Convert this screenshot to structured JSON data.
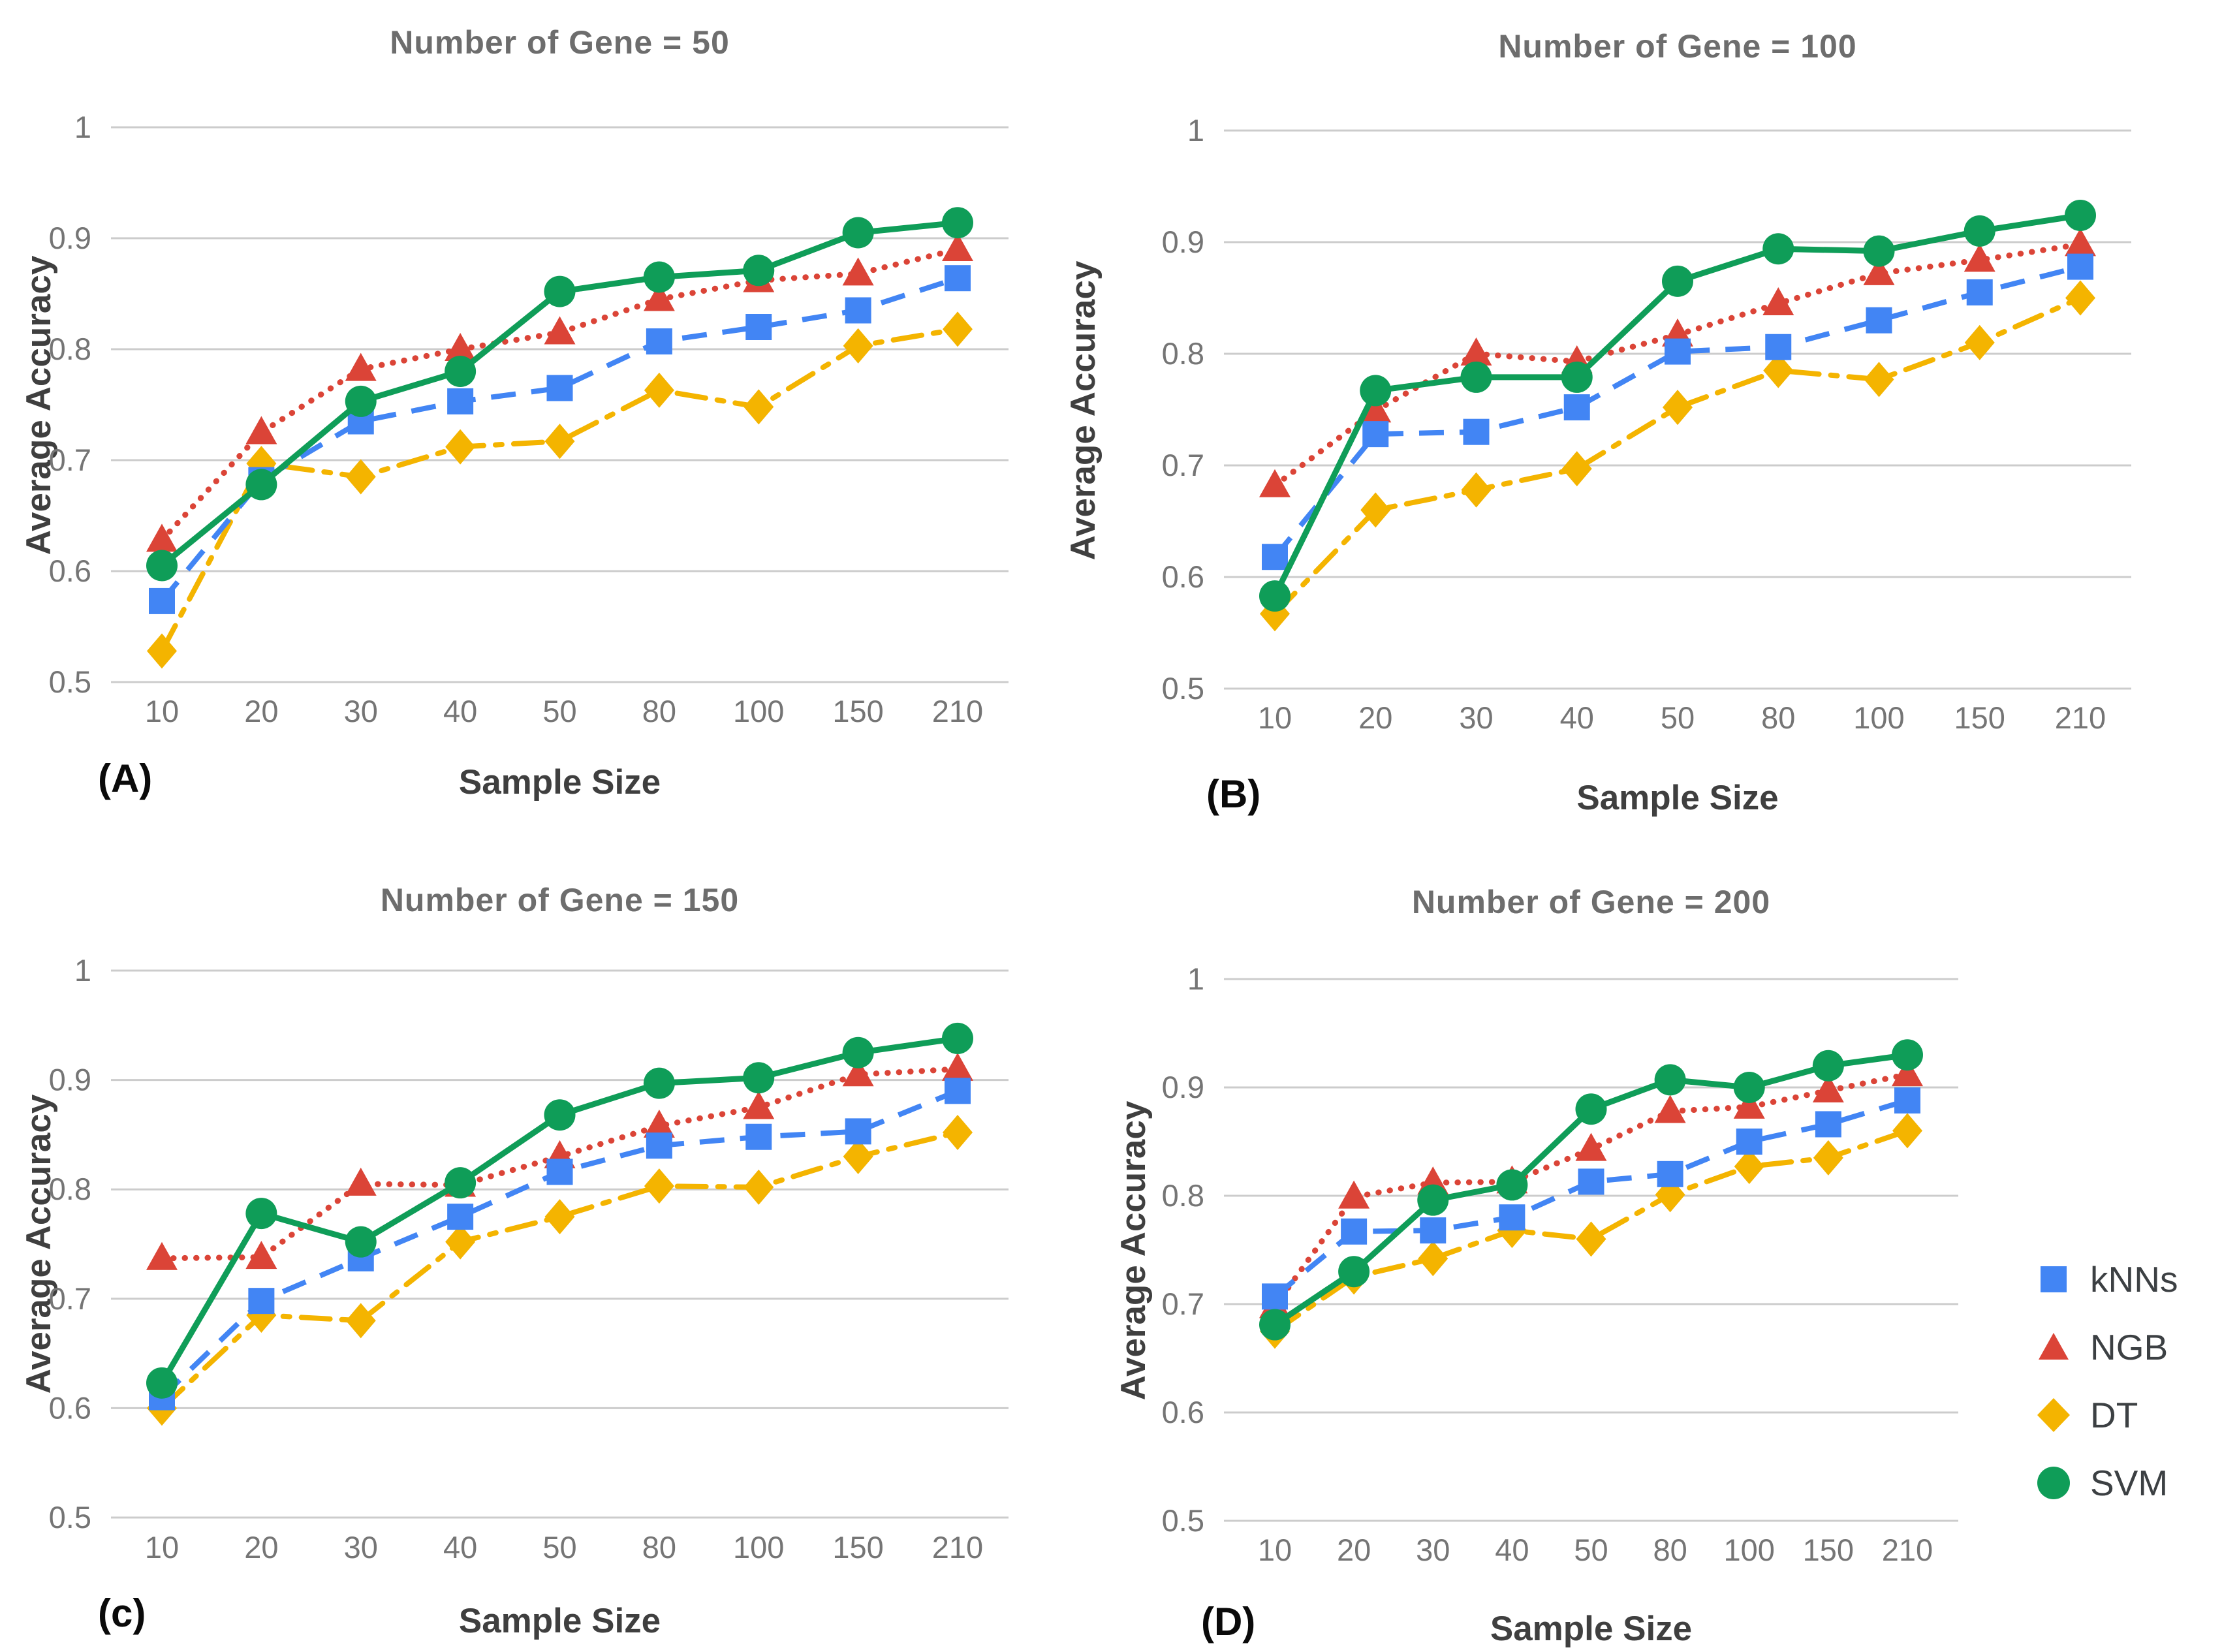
{
  "figure": {
    "background": "#ffffff",
    "legend": {
      "items": [
        {
          "label": "kNNs",
          "color": "#4285F4",
          "marker": "square"
        },
        {
          "label": "NGB",
          "color": "#DB4437",
          "marker": "triangle"
        },
        {
          "label": "DT",
          "color": "#F4B400",
          "marker": "diamond"
        },
        {
          "label": "SVM",
          "color": "#0F9D58",
          "marker": "circle"
        }
      ]
    }
  },
  "chart_data": [
    {
      "type": "line",
      "panel_label": "(A)",
      "title": "Number of Gene = 50",
      "xlabel": "Sample Size",
      "ylabel": "Average Accuracy",
      "categories": [
        "10",
        "20",
        "30",
        "40",
        "50",
        "80",
        "100",
        "150",
        "210"
      ],
      "ylim": [
        0.5,
        1.0
      ],
      "yticks": [
        1,
        0.9,
        0.8,
        0.7,
        0.6,
        0.5
      ],
      "ytick_labels": [
        "1",
        "0.9",
        "0.8",
        "0.7",
        "0.6",
        "0.5"
      ],
      "grid": true,
      "legend_position": "figure-right",
      "series": [
        {
          "name": "kNNs",
          "color": "#4285F4",
          "marker": "square",
          "line_style": "dashed",
          "values": [
            0.573,
            0.682,
            0.735,
            0.753,
            0.765,
            0.807,
            0.82,
            0.835,
            0.864
          ]
        },
        {
          "name": "NGB",
          "color": "#DB4437",
          "marker": "triangle",
          "line_style": "dotted",
          "values": [
            0.628,
            0.725,
            0.782,
            0.8,
            0.815,
            0.845,
            0.862,
            0.868,
            0.89
          ]
        },
        {
          "name": "DT",
          "color": "#F4B400",
          "marker": "diamond",
          "line_style": "dashdot",
          "values": [
            0.528,
            0.697,
            0.685,
            0.712,
            0.717,
            0.763,
            0.748,
            0.803,
            0.818
          ]
        },
        {
          "name": "SVM",
          "color": "#0F9D58",
          "marker": "circle",
          "line_style": "solid",
          "values": [
            0.605,
            0.678,
            0.753,
            0.78,
            0.852,
            0.865,
            0.871,
            0.905,
            0.914
          ]
        }
      ]
    },
    {
      "type": "line",
      "panel_label": "(B)",
      "title": "Number of Gene = 100",
      "xlabel": "Sample Size",
      "ylabel": "Average Accuracy",
      "categories": [
        "10",
        "20",
        "30",
        "40",
        "50",
        "80",
        "100",
        "150",
        "210"
      ],
      "ylim": [
        0.5,
        1.0
      ],
      "yticks": [
        1,
        0.9,
        0.8,
        0.7,
        0.6,
        0.5
      ],
      "ytick_labels": [
        "1",
        "0.9",
        "0.8",
        "0.7",
        "0.6",
        "0.5"
      ],
      "grid": true,
      "legend_position": "figure-right",
      "series": [
        {
          "name": "kNNs",
          "color": "#4285F4",
          "marker": "square",
          "line_style": "dashed",
          "values": [
            0.618,
            0.728,
            0.73,
            0.752,
            0.802,
            0.806,
            0.83,
            0.855,
            0.878
          ]
        },
        {
          "name": "NGB",
          "color": "#DB4437",
          "marker": "triangle",
          "line_style": "dotted",
          "values": [
            0.682,
            0.749,
            0.8,
            0.793,
            0.817,
            0.845,
            0.872,
            0.884,
            0.898
          ]
        },
        {
          "name": "DT",
          "color": "#F4B400",
          "marker": "diamond",
          "line_style": "dashdot",
          "values": [
            0.567,
            0.66,
            0.678,
            0.697,
            0.752,
            0.785,
            0.777,
            0.81,
            0.85
          ]
        },
        {
          "name": "SVM",
          "color": "#0F9D58",
          "marker": "circle",
          "line_style": "solid",
          "values": [
            0.583,
            0.767,
            0.779,
            0.779,
            0.865,
            0.894,
            0.892,
            0.91,
            0.924
          ]
        }
      ]
    },
    {
      "type": "line",
      "panel_label": "(c)",
      "title": "Number of Gene = 150",
      "xlabel": "Sample Size",
      "ylabel": "Average Accuracy",
      "categories": [
        "10",
        "20",
        "30",
        "40",
        "50",
        "80",
        "100",
        "150",
        "210"
      ],
      "ylim": [
        0.5,
        1.0
      ],
      "yticks": [
        1,
        0.9,
        0.8,
        0.7,
        0.6,
        0.5
      ],
      "ytick_labels": [
        "1",
        "0.9",
        "0.8",
        "0.7",
        "0.6",
        "0.5"
      ],
      "grid": true,
      "legend_position": "figure-right",
      "series": [
        {
          "name": "kNNs",
          "color": "#4285F4",
          "marker": "square",
          "line_style": "dashed",
          "values": [
            0.61,
            0.698,
            0.737,
            0.775,
            0.816,
            0.84,
            0.848,
            0.853,
            0.89
          ]
        },
        {
          "name": "NGB",
          "color": "#DB4437",
          "marker": "triangle",
          "line_style": "dotted",
          "values": [
            0.737,
            0.738,
            0.805,
            0.804,
            0.83,
            0.858,
            0.875,
            0.905,
            0.91
          ]
        },
        {
          "name": "DT",
          "color": "#F4B400",
          "marker": "diamond",
          "line_style": "dashdot",
          "values": [
            0.6,
            0.685,
            0.68,
            0.752,
            0.775,
            0.803,
            0.802,
            0.83,
            0.852
          ]
        },
        {
          "name": "SVM",
          "color": "#0F9D58",
          "marker": "circle",
          "line_style": "solid",
          "values": [
            0.623,
            0.778,
            0.752,
            0.806,
            0.868,
            0.897,
            0.902,
            0.925,
            0.938
          ]
        }
      ]
    },
    {
      "type": "line",
      "panel_label": "(D)",
      "title": "Number of Gene = 200",
      "xlabel": "Sample Size",
      "ylabel": "Average Accuracy",
      "categories": [
        "10",
        "20",
        "30",
        "40",
        "50",
        "80",
        "100",
        "150",
        "210"
      ],
      "ylim": [
        0.5,
        1.0
      ],
      "yticks": [
        1,
        0.9,
        0.8,
        0.7,
        0.6,
        0.5
      ],
      "ytick_labels": [
        "1",
        "0.9",
        "0.8",
        "0.7",
        "0.6",
        "0.5"
      ],
      "grid": true,
      "legend_position": "figure-right",
      "series": [
        {
          "name": "kNNs",
          "color": "#4285F4",
          "marker": "square",
          "line_style": "dashed",
          "values": [
            0.707,
            0.767,
            0.768,
            0.78,
            0.813,
            0.82,
            0.85,
            0.866,
            0.888
          ]
        },
        {
          "name": "NGB",
          "color": "#DB4437",
          "marker": "triangle",
          "line_style": "dotted",
          "values": [
            0.698,
            0.799,
            0.812,
            0.813,
            0.843,
            0.878,
            0.882,
            0.897,
            0.912
          ]
        },
        {
          "name": "DT",
          "color": "#F4B400",
          "marker": "diamond",
          "line_style": "dashdot",
          "values": [
            0.675,
            0.725,
            0.742,
            0.768,
            0.76,
            0.801,
            0.827,
            0.835,
            0.86
          ]
        },
        {
          "name": "SVM",
          "color": "#0F9D58",
          "marker": "circle",
          "line_style": "solid",
          "values": [
            0.681,
            0.73,
            0.796,
            0.81,
            0.88,
            0.907,
            0.9,
            0.92,
            0.93
          ]
        }
      ]
    }
  ]
}
